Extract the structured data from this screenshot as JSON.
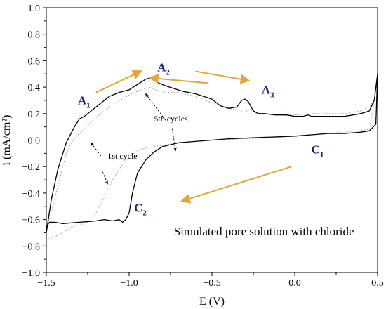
{
  "chart_data": {
    "type": "line",
    "title": "",
    "xlabel": "E (V)",
    "ylabel": "i (mA/cm²)",
    "xlim": [
      -1.5,
      0.5
    ],
    "ylim": [
      -1.0,
      1.0
    ],
    "x_ticks": [
      -1.5,
      -1.0,
      -0.5,
      0.0,
      0.5
    ],
    "x_tick_labels": [
      "−1.5",
      "−1.0",
      "−0.5",
      "0.0",
      "0.5"
    ],
    "y_ticks": [
      -1.0,
      -0.8,
      -0.6,
      -0.4,
      -0.2,
      0.0,
      0.2,
      0.4,
      0.6,
      0.8,
      1.0
    ],
    "y_tick_labels": [
      "−1.0",
      "−0.8",
      "−0.6",
      "−0.4",
      "−0.2",
      "0.0",
      "0.2",
      "0.4",
      "0.6",
      "0.8",
      "1.0"
    ],
    "grid": false,
    "zero_line": true,
    "series": [
      {
        "label": "1st cycle",
        "style": "dotted",
        "color": "#9e9e9e",
        "x": [
          -1.5,
          -1.46,
          -1.42,
          -1.38,
          -1.34,
          -1.3,
          -1.26,
          -1.2,
          -1.1,
          -1.0,
          -0.93,
          -0.9,
          -0.88,
          -0.84,
          -0.78,
          -0.7,
          -0.6,
          -0.5,
          -0.4,
          -0.3,
          -0.28,
          -0.25,
          -0.2,
          -0.1,
          0.0,
          0.1,
          0.2,
          0.3,
          0.4,
          0.45,
          0.48,
          0.5,
          0.45,
          0.3,
          0.1,
          -0.1,
          -0.3,
          -0.5,
          -0.6,
          -0.7,
          -0.75,
          -0.8,
          -0.85,
          -0.9,
          -0.95,
          -1.0,
          -1.05,
          -1.1,
          -1.15,
          -1.2,
          -1.25,
          -1.3,
          -1.35,
          -1.4,
          -1.45,
          -1.5
        ],
        "y": [
          -0.7,
          -0.5,
          -0.3,
          -0.1,
          0.0,
          0.05,
          0.1,
          0.17,
          0.27,
          0.34,
          0.38,
          0.39,
          0.4,
          0.38,
          0.36,
          0.36,
          0.33,
          0.28,
          0.24,
          0.21,
          0.23,
          0.22,
          0.2,
          0.19,
          0.19,
          0.2,
          0.2,
          0.2,
          0.22,
          0.25,
          0.3,
          0.45,
          0.08,
          0.06,
          0.04,
          0.02,
          0.01,
          0.0,
          -0.01,
          -0.02,
          -0.03,
          -0.04,
          -0.05,
          -0.06,
          -0.08,
          -0.13,
          -0.2,
          -0.3,
          -0.43,
          -0.55,
          -0.62,
          -0.64,
          -0.66,
          -0.7,
          -0.73,
          -0.75
        ]
      },
      {
        "label": "5th cycles",
        "style": "solid",
        "color": "#000000",
        "x": [
          -1.5,
          -1.47,
          -1.43,
          -1.38,
          -1.33,
          -1.3,
          -1.27,
          -1.23,
          -1.18,
          -1.12,
          -1.06,
          -1.0,
          -0.95,
          -0.9,
          -0.87,
          -0.85,
          -0.82,
          -0.78,
          -0.73,
          -0.68,
          -0.6,
          -0.55,
          -0.5,
          -0.45,
          -0.4,
          -0.35,
          -0.32,
          -0.3,
          -0.28,
          -0.25,
          -0.22,
          -0.18,
          -0.12,
          -0.05,
          0.0,
          0.05,
          0.08,
          0.1,
          0.2,
          0.3,
          0.35,
          0.4,
          0.45,
          0.48,
          0.5,
          0.49,
          0.45,
          0.4,
          0.3,
          0.2,
          0.1,
          0.0,
          -0.2,
          -0.4,
          -0.6,
          -0.7,
          -0.8,
          -0.85,
          -0.9,
          -0.95,
          -0.98,
          -1.0,
          -1.02,
          -1.04,
          -1.06,
          -1.1,
          -1.15,
          -1.2,
          -1.3,
          -1.4,
          -1.45,
          -1.48,
          -1.5
        ],
        "y": [
          -0.7,
          -0.45,
          -0.22,
          -0.02,
          0.1,
          0.16,
          0.18,
          0.22,
          0.27,
          0.33,
          0.36,
          0.38,
          0.42,
          0.46,
          0.47,
          0.45,
          0.43,
          0.41,
          0.39,
          0.37,
          0.35,
          0.33,
          0.31,
          0.26,
          0.24,
          0.25,
          0.3,
          0.31,
          0.29,
          0.22,
          0.2,
          0.2,
          0.19,
          0.19,
          0.18,
          0.18,
          0.19,
          0.18,
          0.18,
          0.18,
          0.19,
          0.2,
          0.22,
          0.3,
          0.5,
          0.12,
          0.07,
          0.06,
          0.05,
          0.05,
          0.04,
          0.03,
          0.02,
          0.01,
          -0.01,
          -0.02,
          -0.05,
          -0.09,
          -0.15,
          -0.25,
          -0.4,
          -0.55,
          -0.6,
          -0.62,
          -0.6,
          -0.61,
          -0.6,
          -0.61,
          -0.62,
          -0.63,
          -0.62,
          -0.62,
          -0.65
        ]
      }
    ],
    "peak_labels": [
      {
        "main": "A",
        "sub": "1",
        "x": -1.31,
        "y": 0.27
      },
      {
        "main": "A",
        "sub": "2",
        "x": -0.83,
        "y": 0.52
      },
      {
        "main": "A",
        "sub": "3",
        "x": -0.2,
        "y": 0.35
      },
      {
        "main": "C",
        "sub": "1",
        "x": 0.1,
        "y": -0.1
      },
      {
        "main": "C",
        "sub": "2",
        "x": -0.97,
        "y": -0.54
      }
    ],
    "annotations": [
      {
        "text": "5th cycles",
        "x": -0.85,
        "y": 0.14
      },
      {
        "text": "1st cycle",
        "x": -1.13,
        "y": -0.14
      },
      {
        "text": "Simulated pore solution with chloride",
        "x": -0.73,
        "y": -0.72
      }
    ],
    "direction_arrows": [
      {
        "from": [
          -1.2,
          0.36
        ],
        "to": [
          -0.93,
          0.52
        ]
      },
      {
        "from": [
          -0.6,
          0.52
        ],
        "to": [
          -0.28,
          0.45
        ]
      },
      {
        "from": [
          -0.02,
          -0.2
        ],
        "to": [
          -0.68,
          -0.46
        ]
      },
      {
        "from": [
          -0.52,
          0.43
        ],
        "to": [
          -0.87,
          0.47
        ]
      }
    ],
    "pointer_arrows": [
      {
        "from": [
          -0.78,
          0.15
        ],
        "to": [
          -0.9,
          0.35
        ]
      },
      {
        "from": [
          -0.74,
          0.09
        ],
        "to": [
          -0.72,
          -0.08
        ]
      },
      {
        "from": [
          -1.17,
          -0.12
        ],
        "to": [
          -1.23,
          -0.02
        ]
      },
      {
        "from": [
          -1.16,
          -0.24
        ],
        "to": [
          -1.13,
          -0.33
        ]
      }
    ],
    "colors": {
      "peak_label": "#1b1f7a",
      "direction_arrow": "#e6a532",
      "axis": "#000000"
    }
  }
}
